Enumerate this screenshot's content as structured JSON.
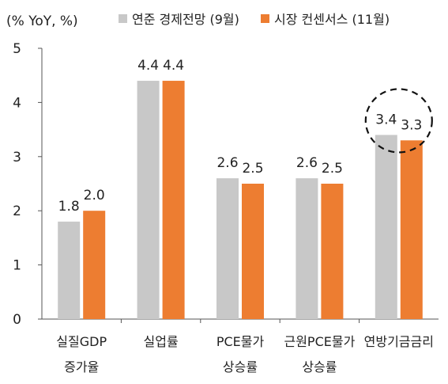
{
  "chart_data": {
    "type": "bar",
    "ylabel": "(% YoY, %)",
    "ylim": [
      0,
      5
    ],
    "yticks": [
      "0",
      "1",
      "2",
      "3",
      "4",
      "5"
    ],
    "grid": false,
    "legend_position": "top",
    "categories": [
      [
        "실질GDP",
        "증가율"
      ],
      [
        "실업률"
      ],
      [
        "PCE물가",
        "상승률"
      ],
      [
        "근원PCE물가",
        "상승률"
      ],
      [
        "연방기금금리"
      ]
    ],
    "series": [
      {
        "name": "연준 경제전망 (9월)",
        "color": "#c8c8c8",
        "values": [
          1.8,
          4.4,
          2.6,
          2.6,
          3.4
        ]
      },
      {
        "name": "시장 컨센서스 (11월)",
        "color": "#ed7d31",
        "values": [
          2.0,
          4.4,
          2.5,
          2.5,
          3.3
        ]
      }
    ],
    "data_labels": [
      [
        "1.8",
        "4.4",
        "2.6",
        "2.6",
        "3.4"
      ],
      [
        "2.0",
        "4.4",
        "2.5",
        "2.5",
        "3.3"
      ]
    ],
    "annotation": {
      "type": "dashed-circle",
      "category": "연방기금금리"
    }
  }
}
